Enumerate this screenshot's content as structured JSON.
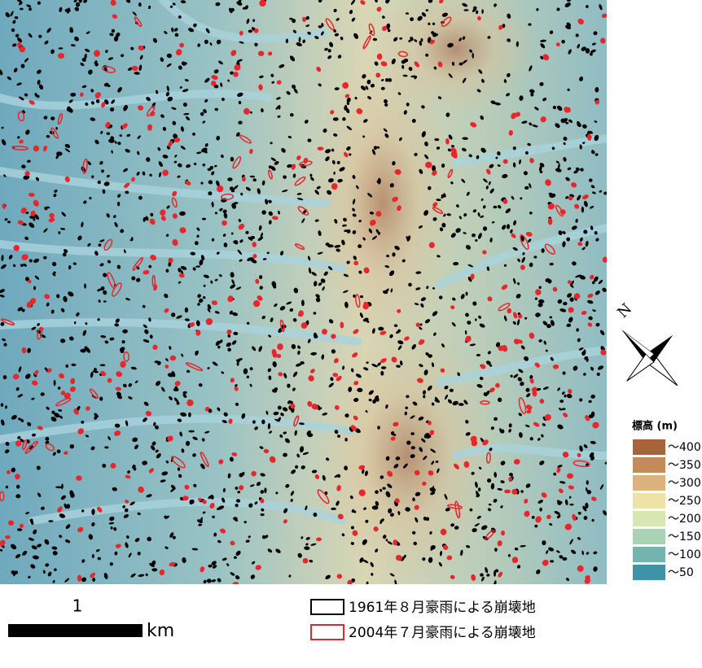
{
  "map": {
    "scale_bar": {
      "value_label": "1",
      "unit": "km"
    },
    "north_label": "N",
    "elevation_legend": {
      "title": "標高 (m)",
      "classes": [
        {
          "label": "～400",
          "color": "#a5643a"
        },
        {
          "label": "～350",
          "color": "#c38a5c"
        },
        {
          "label": "～300",
          "color": "#ddb27c"
        },
        {
          "label": "～250",
          "color": "#efe2a6"
        },
        {
          "label": "～200",
          "color": "#d7e6b2"
        },
        {
          "label": "～150",
          "color": "#a9d3b4"
        },
        {
          "label": "～100",
          "color": "#74b4ae"
        },
        {
          "label": "～50",
          "color": "#3e93a4"
        }
      ]
    },
    "landslide_legend": [
      {
        "label": "1961年８月豪雨による崩壊地",
        "color": "#000000"
      },
      {
        "label": "2004年７月豪雨による崩壊地",
        "color": "#e8262b"
      }
    ]
  }
}
